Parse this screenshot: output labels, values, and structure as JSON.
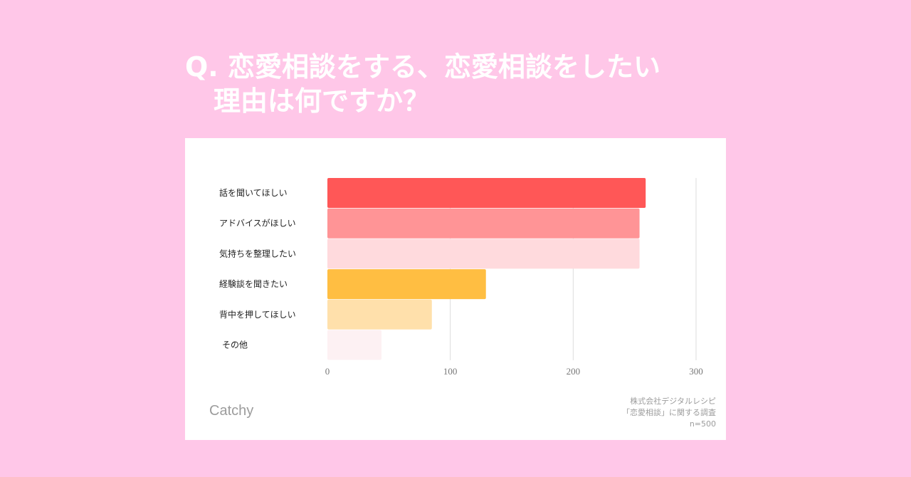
{
  "title": {
    "line1": "Q. 恋愛相談をする、恋愛相談をしたい",
    "line2": "理由は何ですか？"
  },
  "brand": "Catchy",
  "source": {
    "line1": "株式会社デジタルレシピ",
    "line2": "「恋愛相談」に関する調査",
    "line3": "n=500"
  },
  "chart_data": {
    "type": "bar",
    "orientation": "horizontal",
    "categories": [
      "話を聞いてほしい",
      "アドバイスがほしい",
      "気持ちを整理したい",
      "経験談を聞きたい",
      "背中を押してほしい",
      "その他"
    ],
    "values": [
      259,
      254,
      254,
      129,
      85,
      44
    ],
    "colors": [
      "#ff5757",
      "#ff9496",
      "#ffdadd",
      "#ffbe42",
      "#ffe0ab",
      "#fdf1f3"
    ],
    "xlim": [
      0,
      300
    ],
    "xticks": [
      0,
      100,
      200,
      300
    ],
    "grid": true
  }
}
